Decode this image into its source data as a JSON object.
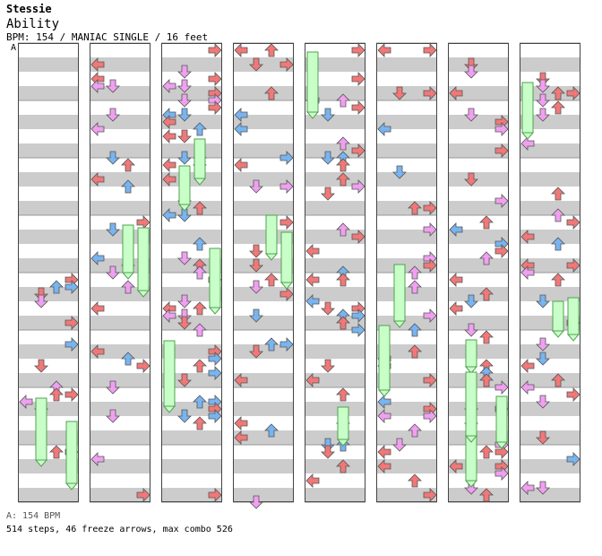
{
  "header": {
    "author": "Stessie",
    "song_title": "Ability",
    "chart_info": "BPM: 154 / MANIAC SINGLE / 16 feet",
    "bpm_marker": "A"
  },
  "footer": {
    "bpm_legend": "A: 154 BPM",
    "stats": "514 steps, 46 freeze arrows, max combo 526"
  },
  "colors": {
    "background": "#ffffff",
    "band_gray": "#cccccc",
    "column_border": "#444444",
    "quarter_note": "#f07878",
    "eighth_note": "#78b4f0",
    "sixteenth_note": "#f0a0f0",
    "freeze_body": "#c8ffc8",
    "freeze_border": "#50a050"
  },
  "chart_data": {
    "type": "stepchart",
    "mode": "MANIAC SINGLE",
    "bpm": 154,
    "columns": 8,
    "measures_per_column": 4,
    "lanes": [
      "left",
      "down",
      "up",
      "right"
    ],
    "freeze_count": 46,
    "step_count": 514,
    "max_combo": 526,
    "seed": 154
  }
}
